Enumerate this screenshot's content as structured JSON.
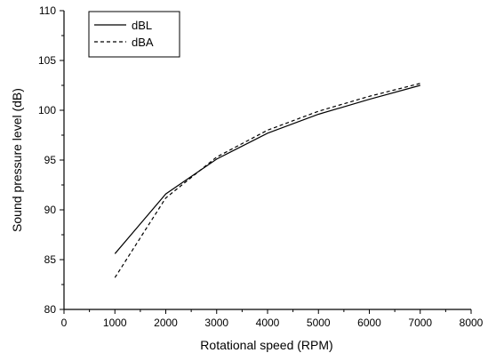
{
  "chart_data": {
    "type": "line",
    "title": "",
    "xlabel": "Rotational speed (RPM)",
    "ylabel": "Sound pressure level (dB)",
    "xlim": [
      0,
      8000
    ],
    "ylim": [
      80,
      110
    ],
    "xticks": [
      0,
      1000,
      2000,
      3000,
      4000,
      5000,
      6000,
      7000,
      8000
    ],
    "yticks": [
      80,
      85,
      90,
      95,
      100,
      105,
      110
    ],
    "grid": false,
    "legend_position": "top-left",
    "series": [
      {
        "name": "dBL",
        "line_style": "solid",
        "x": [
          1000,
          2000,
          3000,
          4000,
          5000,
          6000,
          7000
        ],
        "y": [
          85.6,
          91.6,
          95.1,
          97.7,
          99.6,
          101.1,
          102.5
        ]
      },
      {
        "name": "dBA",
        "line_style": "dashed",
        "x": [
          1000,
          2000,
          3000,
          4000,
          5000,
          6000,
          7000
        ],
        "y": [
          83.2,
          91.2,
          95.3,
          98.0,
          99.9,
          101.4,
          102.7
        ]
      }
    ]
  }
}
